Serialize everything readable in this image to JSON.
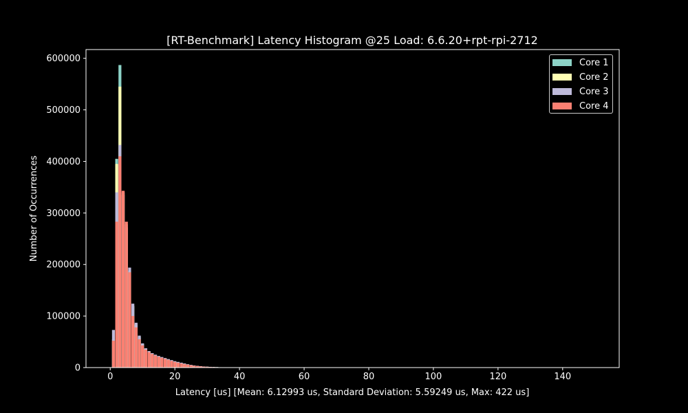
{
  "chart_data": {
    "type": "bar",
    "style": "histogram",
    "title": "[RT-Benchmark] Latency Histogram @25 Load: 6.6.20+rpt-rpi-2712",
    "xlabel": "Latency [us] [Mean: 6.12993 us, Standard Deviation: 5.59249 us, Max: 422 us]",
    "ylabel": "Number of Occurrences",
    "xlim": [
      -7.5,
      157.5
    ],
    "ylim": [
      0,
      617000
    ],
    "xticks": [
      0,
      20,
      40,
      60,
      80,
      100,
      120,
      140
    ],
    "yticks": [
      0,
      100000,
      200000,
      300000,
      400000,
      500000,
      600000
    ],
    "legend_position": "top-right",
    "x": [
      1,
      2,
      3,
      4,
      5,
      6,
      7,
      8,
      9,
      10,
      11,
      12,
      13,
      14,
      15,
      16,
      17,
      18,
      19,
      20,
      21,
      22,
      23,
      24,
      25,
      26,
      27,
      28,
      29,
      30,
      31,
      32,
      33,
      34,
      35,
      36
    ],
    "series": [
      {
        "name": "Core 1",
        "color": "#8dd3c7",
        "values": [
          50000,
          405000,
          587000,
          340000,
          270000,
          185000,
          118000,
          82000,
          58000,
          45000,
          36000,
          31000,
          27000,
          24000,
          21500,
          19500,
          17500,
          15500,
          13500,
          11500,
          10000,
          8500,
          7000,
          5800,
          4700,
          3800,
          3000,
          2400,
          1900,
          1500,
          1200,
          1000,
          800,
          600,
          450,
          350
        ]
      },
      {
        "name": "Core 2",
        "color": "#ffffb3",
        "values": [
          55000,
          395000,
          545000,
          335000,
          272000,
          188000,
          120000,
          84000,
          60000,
          46000,
          37000,
          31500,
          27500,
          24500,
          22000,
          20000,
          18000,
          16000,
          14000,
          12000,
          10500,
          9000,
          7500,
          6200,
          5000,
          4000,
          3200,
          2600,
          2000,
          1600,
          1300,
          1050,
          850,
          650,
          500,
          380
        ]
      },
      {
        "name": "Core 3",
        "color": "#bebada",
        "values": [
          73000,
          340000,
          432000,
          340000,
          278000,
          194000,
          124000,
          87000,
          62000,
          47000,
          37500,
          32000,
          28000,
          25000,
          22500,
          20500,
          18500,
          16500,
          14500,
          12500,
          11000,
          9500,
          8000,
          6500,
          5200,
          4200,
          3400,
          2700,
          2100,
          1700,
          1400,
          1100,
          900,
          700,
          550,
          400
        ]
      },
      {
        "name": "Core 4",
        "color": "#fb8072",
        "values": [
          52000,
          283000,
          410000,
          343000,
          283000,
          185000,
          100000,
          78000,
          55000,
          43000,
          35000,
          30000,
          26500,
          23500,
          21000,
          19000,
          17000,
          15000,
          13000,
          11000,
          9500,
          8000,
          6800,
          5600,
          4500,
          3600,
          2900,
          2300,
          1800,
          1400,
          1100,
          900,
          700,
          550,
          400,
          300
        ]
      }
    ]
  }
}
